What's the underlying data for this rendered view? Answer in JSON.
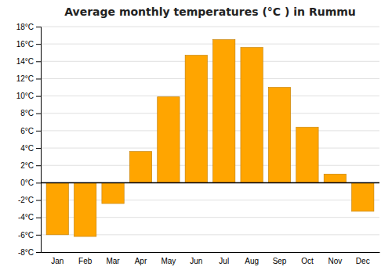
{
  "chart_data": {
    "type": "bar",
    "title": "Average monthly temperatures (°C ) in Rummu",
    "categories": [
      "Jan",
      "Feb",
      "Mar",
      "Apr",
      "May",
      "Jun",
      "Jul",
      "Aug",
      "Sep",
      "Oct",
      "Nov",
      "Dec"
    ],
    "values": [
      -6.0,
      -6.2,
      -2.4,
      3.6,
      9.9,
      14.7,
      16.5,
      15.6,
      11.0,
      6.4,
      1.0,
      -3.3
    ],
    "color": "#FFA500",
    "ylim": [
      -8,
      18
    ],
    "yticks": [
      {
        "value": -8,
        "label": "-8°C"
      },
      {
        "value": -6,
        "label": "-6°C"
      },
      {
        "value": -4,
        "label": "-4°C"
      },
      {
        "value": -2,
        "label": "-2°C"
      },
      {
        "value": 0,
        "label": "0°C"
      },
      {
        "value": 2,
        "label": "2°C"
      },
      {
        "value": 4,
        "label": "4°C"
      },
      {
        "value": 6,
        "label": "6°C"
      },
      {
        "value": 8,
        "label": "8°C"
      },
      {
        "value": 10,
        "label": "10°C"
      },
      {
        "value": 12,
        "label": "12°C"
      },
      {
        "value": 14,
        "label": "14°C"
      },
      {
        "value": 16,
        "label": "16°C"
      },
      {
        "value": 18,
        "label": "18°C"
      }
    ],
    "grid": true
  }
}
